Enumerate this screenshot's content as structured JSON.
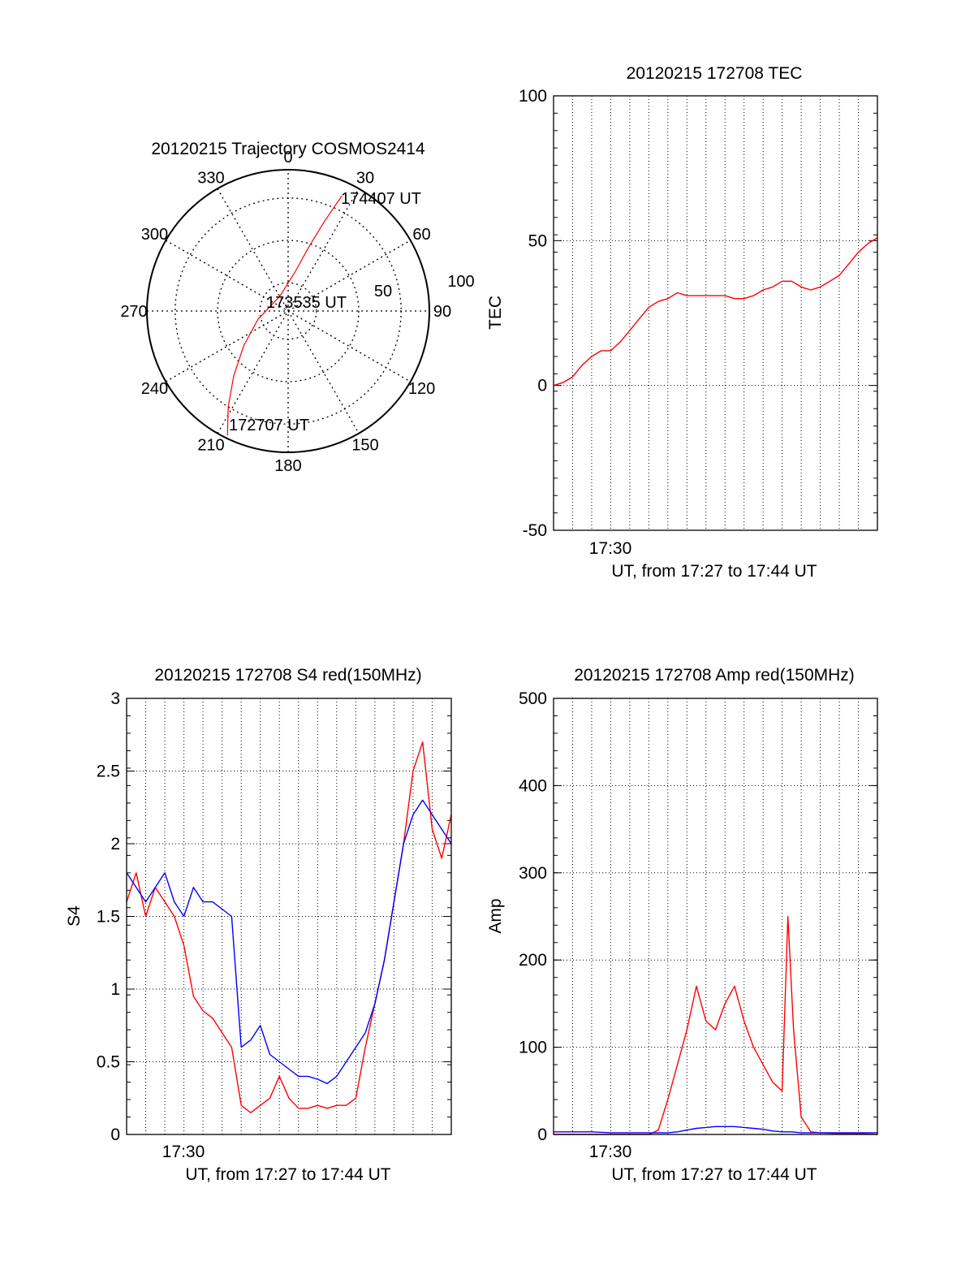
{
  "chart_data": [
    {
      "type": "polar",
      "title": "20120215 Trajectory COSMOS2414",
      "azimuth_labels": [
        "0",
        "30",
        "60",
        "90",
        "120",
        "150",
        "180",
        "210",
        "240",
        "270",
        "300",
        "330"
      ],
      "ring_labels": [
        "50",
        "100"
      ],
      "trajectory": {
        "color": "#ff0000",
        "start_label": "172707 UT",
        "mid_label": "173535 UT",
        "end_label": "174407 UT",
        "points": [
          {
            "az": 206,
            "zen": 98
          },
          {
            "az": 212,
            "zen": 80
          },
          {
            "az": 220,
            "zen": 60
          },
          {
            "az": 232,
            "zen": 40
          },
          {
            "az": 255,
            "zen": 22
          },
          {
            "az": 330,
            "zen": 12
          },
          {
            "az": 10,
            "zen": 28
          },
          {
            "az": 18,
            "zen": 48
          },
          {
            "az": 22,
            "zen": 68
          },
          {
            "az": 25,
            "zen": 90
          }
        ]
      }
    },
    {
      "type": "line",
      "title": "20120215 172708 TEC",
      "ylabel": "TEC",
      "xlabel": "UT, from 17:27 to 17:44 UT",
      "x_tick_label": "17:30",
      "ylim": [
        -50,
        100
      ],
      "y_ticks": [
        "-50",
        "0",
        "50",
        "100"
      ],
      "series": [
        {
          "color": "#ff0000",
          "x": [
            0,
            0.5,
            1,
            1.5,
            2,
            2.5,
            3,
            3.5,
            4,
            4.5,
            5,
            5.5,
            6,
            6.5,
            7,
            8,
            9,
            9.5,
            10,
            10.5,
            11,
            11.5,
            12,
            12.5,
            13,
            13.5,
            14,
            14.5,
            15,
            15.5,
            16,
            16.5,
            17
          ],
          "y": [
            0,
            1,
            3,
            7,
            10,
            12,
            12,
            15,
            19,
            23,
            27,
            29,
            30,
            32,
            31,
            31,
            31,
            30,
            30,
            31,
            33,
            34,
            36,
            36,
            34,
            33,
            34,
            36,
            38,
            42,
            46,
            49,
            51
          ]
        }
      ]
    },
    {
      "type": "line",
      "title": "20120215 172708 S4 red(150MHz)",
      "ylabel": "S4",
      "xlabel": "UT, from 17:27 to 17:44 UT",
      "x_tick_label": "17:30",
      "ylim": [
        0,
        3
      ],
      "y_ticks": [
        "0",
        "0.5",
        "1",
        "1.5",
        "2",
        "2.5",
        "3"
      ],
      "series": [
        {
          "color": "#ff0000",
          "x": [
            0,
            0.5,
            1,
            1.5,
            2,
            2.5,
            3,
            3.5,
            4,
            4.5,
            5,
            5.5,
            6,
            6.5,
            7,
            7.5,
            8,
            8.5,
            9,
            9.5,
            10,
            10.5,
            11,
            11.5,
            12,
            12.5,
            13,
            13.5,
            14,
            14.5,
            15,
            15.5,
            16,
            16.5,
            17
          ],
          "y": [
            1.6,
            1.8,
            1.5,
            1.7,
            1.6,
            1.5,
            1.3,
            0.95,
            0.85,
            0.8,
            0.7,
            0.6,
            0.2,
            0.15,
            0.2,
            0.25,
            0.4,
            0.25,
            0.18,
            0.18,
            0.2,
            0.18,
            0.2,
            0.2,
            0.25,
            0.6,
            0.9,
            1.2,
            1.6,
            2.0,
            2.5,
            2.7,
            2.1,
            1.9,
            2.2
          ]
        },
        {
          "color": "#0000ff",
          "x": [
            0,
            0.5,
            1,
            1.5,
            2,
            2.5,
            3,
            3.5,
            4,
            4.5,
            5,
            5.5,
            6,
            6.5,
            7,
            7.5,
            8,
            8.5,
            9,
            9.5,
            10,
            10.5,
            11,
            11.5,
            12,
            12.5,
            13,
            13.5,
            14,
            14.5,
            15,
            15.5,
            16,
            16.5,
            17
          ],
          "y": [
            1.8,
            1.7,
            1.6,
            1.7,
            1.8,
            1.6,
            1.5,
            1.7,
            1.6,
            1.6,
            1.55,
            1.5,
            0.6,
            0.65,
            0.75,
            0.55,
            0.5,
            0.45,
            0.4,
            0.4,
            0.38,
            0.35,
            0.4,
            0.5,
            0.6,
            0.7,
            0.9,
            1.2,
            1.6,
            2.0,
            2.2,
            2.3,
            2.2,
            2.1,
            2.0
          ]
        }
      ]
    },
    {
      "type": "line",
      "title": "20120215 172708 Amp red(150MHz)",
      "ylabel": "Amp",
      "xlabel": "UT, from 17:27 to 17:44 UT",
      "x_tick_label": "17:30",
      "ylim": [
        0,
        500
      ],
      "y_ticks": [
        "0",
        "100",
        "200",
        "300",
        "400",
        "500"
      ],
      "series": [
        {
          "color": "#ff0000",
          "x": [
            0,
            1,
            2,
            3,
            4,
            5,
            5.5,
            6,
            6.5,
            7,
            7.5,
            8,
            8.5,
            9,
            9.5,
            10,
            10.5,
            11,
            11.5,
            12,
            12.3,
            12.6,
            13,
            13.5,
            14,
            15,
            16,
            17
          ],
          "y": [
            0,
            0,
            0,
            0,
            0,
            0,
            5,
            40,
            80,
            120,
            170,
            130,
            120,
            150,
            170,
            130,
            100,
            80,
            60,
            50,
            250,
            120,
            20,
            3,
            2,
            1,
            1,
            0
          ]
        },
        {
          "color": "#0000ff",
          "x": [
            0,
            1,
            2,
            3,
            4,
            5,
            6,
            6.5,
            7,
            7.5,
            8,
            8.5,
            9,
            9.5,
            10,
            10.5,
            11,
            11.5,
            12,
            12.5,
            13,
            14,
            15,
            16,
            17
          ],
          "y": [
            3,
            3,
            3,
            2,
            2,
            2,
            2,
            3,
            5,
            7,
            8,
            9,
            9,
            9,
            8,
            7,
            6,
            4,
            3,
            3,
            2,
            2,
            2,
            2,
            2
          ]
        }
      ]
    }
  ]
}
